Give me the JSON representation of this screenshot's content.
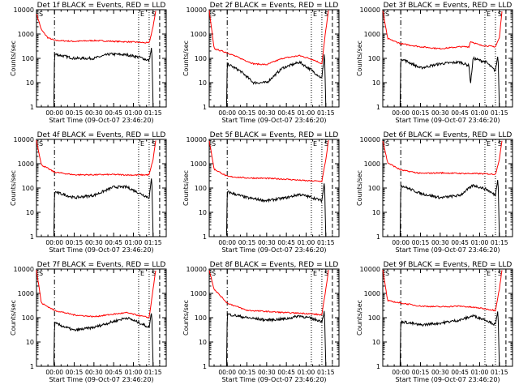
{
  "chart_data": {
    "type": "line",
    "layout": "3x3 grid of panels",
    "shared": {
      "ylabel": "Counts/sec",
      "xlabel": "Start Time (09-Oct-07 23:46:20)",
      "y_scale": "log",
      "ylim": [
        1,
        10000
      ],
      "y_ticks": [
        "1",
        "10",
        "100",
        "1000",
        "10000"
      ],
      "x_start": "23:46:20",
      "x_end": "01:25",
      "xlim_minutes_after_midnight": [
        -13.7,
        85
      ],
      "x_ticks": [
        "00:00",
        "00:15",
        "00:30",
        "00:45",
        "01:00",
        "01:15"
      ],
      "x_tick_minutes": [
        0,
        15,
        30,
        45,
        60,
        75
      ],
      "series_colors": {
        "events": "#000000",
        "lld": "#ff0000"
      },
      "marker_labels": [
        "S",
        "E",
        "S"
      ],
      "grid": false
    },
    "panels": [
      {
        "title": "Det 1f BLACK = Events, RED = LLD",
        "lld": [
          [
            -13.7,
            7000
          ],
          [
            -10,
            1500
          ],
          [
            -5,
            700
          ],
          [
            0,
            550
          ],
          [
            15,
            500
          ],
          [
            30,
            540
          ],
          [
            45,
            500
          ],
          [
            60,
            470
          ],
          [
            72,
            430
          ],
          [
            75,
            2000
          ],
          [
            77,
            9000
          ]
        ],
        "events": [
          [
            -0.5,
            1
          ],
          [
            0,
            150
          ],
          [
            15,
            100
          ],
          [
            30,
            100
          ],
          [
            42,
            150
          ],
          [
            55,
            140
          ],
          [
            65,
            110
          ],
          [
            72,
            80
          ],
          [
            74,
            300
          ],
          [
            75,
            1
          ]
        ],
        "start_line": 0,
        "end_line": 72,
        "dash_line": 80
      },
      {
        "title": "Det 2f BLACK = Events, RED = LLD",
        "lld": [
          [
            -13.7,
            9000
          ],
          [
            -10,
            250
          ],
          [
            0,
            170
          ],
          [
            10,
            100
          ],
          [
            20,
            60
          ],
          [
            30,
            55
          ],
          [
            42,
            100
          ],
          [
            55,
            130
          ],
          [
            65,
            90
          ],
          [
            72,
            60
          ],
          [
            75,
            1500
          ],
          [
            77,
            9000
          ]
        ],
        "events": [
          [
            -0.5,
            1
          ],
          [
            0,
            60
          ],
          [
            10,
            30
          ],
          [
            20,
            10
          ],
          [
            30,
            10
          ],
          [
            42,
            40
          ],
          [
            55,
            70
          ],
          [
            65,
            30
          ],
          [
            72,
            15
          ],
          [
            74,
            200
          ],
          [
            75,
            1
          ]
        ],
        "start_line": 0,
        "end_line": 72,
        "dash_line": 80
      },
      {
        "title": "Det 3f BLACK = Events, RED = LLD",
        "lld": [
          [
            -13.7,
            9000
          ],
          [
            -10,
            650
          ],
          [
            0,
            400
          ],
          [
            15,
            300
          ],
          [
            30,
            250
          ],
          [
            45,
            300
          ],
          [
            52,
            300
          ],
          [
            53,
            500
          ],
          [
            60,
            350
          ],
          [
            72,
            300
          ],
          [
            75,
            700
          ],
          [
            77,
            9000
          ]
        ],
        "events": [
          [
            -0.5,
            1
          ],
          [
            0,
            100
          ],
          [
            15,
            40
          ],
          [
            30,
            60
          ],
          [
            45,
            70
          ],
          [
            52,
            50
          ],
          [
            53,
            8
          ],
          [
            55,
            100
          ],
          [
            65,
            70
          ],
          [
            72,
            30
          ],
          [
            74,
            150
          ],
          [
            75,
            1
          ]
        ],
        "start_line": 0,
        "end_line": 72,
        "dash_line": 80
      },
      {
        "title": "Det 4f BLACK = Events, RED = LLD",
        "lld": [
          [
            -13.7,
            9000
          ],
          [
            -10,
            900
          ],
          [
            0,
            450
          ],
          [
            15,
            350
          ],
          [
            30,
            350
          ],
          [
            45,
            360
          ],
          [
            60,
            340
          ],
          [
            72,
            350
          ],
          [
            75,
            1500
          ],
          [
            77,
            9000
          ]
        ],
        "events": [
          [
            -0.5,
            1
          ],
          [
            0,
            70
          ],
          [
            15,
            40
          ],
          [
            30,
            50
          ],
          [
            45,
            110
          ],
          [
            55,
            110
          ],
          [
            65,
            60
          ],
          [
            72,
            40
          ],
          [
            74,
            300
          ],
          [
            75,
            1
          ]
        ],
        "start_line": 0,
        "end_line": 72,
        "dash_line": 80
      },
      {
        "title": "Det 5f BLACK = Events, RED = LLD",
        "lld": [
          [
            -13.7,
            9000
          ],
          [
            -10,
            600
          ],
          [
            0,
            300
          ],
          [
            15,
            260
          ],
          [
            30,
            250
          ],
          [
            45,
            230
          ],
          [
            60,
            200
          ],
          [
            72,
            190
          ],
          [
            75,
            1500
          ],
          [
            77,
            9000
          ]
        ],
        "events": [
          [
            -0.5,
            1
          ],
          [
            0,
            70
          ],
          [
            15,
            40
          ],
          [
            30,
            30
          ],
          [
            45,
            40
          ],
          [
            55,
            55
          ],
          [
            65,
            40
          ],
          [
            72,
            30
          ],
          [
            74,
            200
          ],
          [
            75,
            1
          ]
        ],
        "start_line": 0,
        "end_line": 72,
        "dash_line": 80
      },
      {
        "title": "Det 6f BLACK = Events, RED = LLD",
        "lld": [
          [
            -13.7,
            9000
          ],
          [
            -10,
            1100
          ],
          [
            0,
            550
          ],
          [
            15,
            400
          ],
          [
            30,
            420
          ],
          [
            45,
            400
          ],
          [
            60,
            390
          ],
          [
            72,
            370
          ],
          [
            75,
            1500
          ],
          [
            77,
            9000
          ]
        ],
        "events": [
          [
            -0.5,
            1
          ],
          [
            0,
            130
          ],
          [
            15,
            60
          ],
          [
            30,
            40
          ],
          [
            45,
            50
          ],
          [
            55,
            130
          ],
          [
            65,
            90
          ],
          [
            72,
            50
          ],
          [
            74,
            300
          ],
          [
            75,
            1
          ]
        ],
        "start_line": 0,
        "end_line": 72,
        "dash_line": 80
      },
      {
        "title": "Det 7f BLACK = Events, RED = LLD",
        "lld": [
          [
            -13.7,
            9000
          ],
          [
            -10,
            400
          ],
          [
            0,
            200
          ],
          [
            15,
            130
          ],
          [
            30,
            110
          ],
          [
            45,
            140
          ],
          [
            55,
            160
          ],
          [
            65,
            120
          ],
          [
            72,
            100
          ],
          [
            75,
            1500
          ],
          [
            77,
            9000
          ]
        ],
        "events": [
          [
            -0.5,
            1
          ],
          [
            0,
            60
          ],
          [
            15,
            30
          ],
          [
            30,
            40
          ],
          [
            45,
            70
          ],
          [
            55,
            100
          ],
          [
            65,
            60
          ],
          [
            72,
            40
          ],
          [
            74,
            200
          ],
          [
            75,
            1
          ]
        ],
        "start_line": 0,
        "end_line": 72,
        "dash_line": 80
      },
      {
        "title": "Det 8f BLACK = Events, RED = LLD",
        "lld": [
          [
            -13.7,
            9000
          ],
          [
            -10,
            1500
          ],
          [
            0,
            400
          ],
          [
            15,
            200
          ],
          [
            30,
            180
          ],
          [
            45,
            160
          ],
          [
            60,
            150
          ],
          [
            72,
            130
          ],
          [
            75,
            1500
          ],
          [
            77,
            9000
          ]
        ],
        "events": [
          [
            -0.5,
            1
          ],
          [
            0,
            140
          ],
          [
            15,
            100
          ],
          [
            30,
            80
          ],
          [
            45,
            90
          ],
          [
            55,
            120
          ],
          [
            65,
            90
          ],
          [
            72,
            70
          ],
          [
            74,
            200
          ],
          [
            75,
            1
          ]
        ],
        "start_line": 0,
        "end_line": 72,
        "dash_line": 80
      },
      {
        "title": "Det 9f BLACK = Events, RED = LLD",
        "lld": [
          [
            -13.7,
            9000
          ],
          [
            -10,
            500
          ],
          [
            0,
            400
          ],
          [
            15,
            300
          ],
          [
            30,
            280
          ],
          [
            45,
            300
          ],
          [
            60,
            250
          ],
          [
            72,
            200
          ],
          [
            75,
            1500
          ],
          [
            77,
            9000
          ]
        ],
        "events": [
          [
            -0.5,
            1
          ],
          [
            0,
            70
          ],
          [
            15,
            50
          ],
          [
            30,
            60
          ],
          [
            45,
            80
          ],
          [
            55,
            120
          ],
          [
            65,
            80
          ],
          [
            72,
            50
          ],
          [
            74,
            200
          ],
          [
            75,
            1
          ]
        ],
        "start_line": 0,
        "end_line": 72,
        "dash_line": 80
      }
    ]
  }
}
